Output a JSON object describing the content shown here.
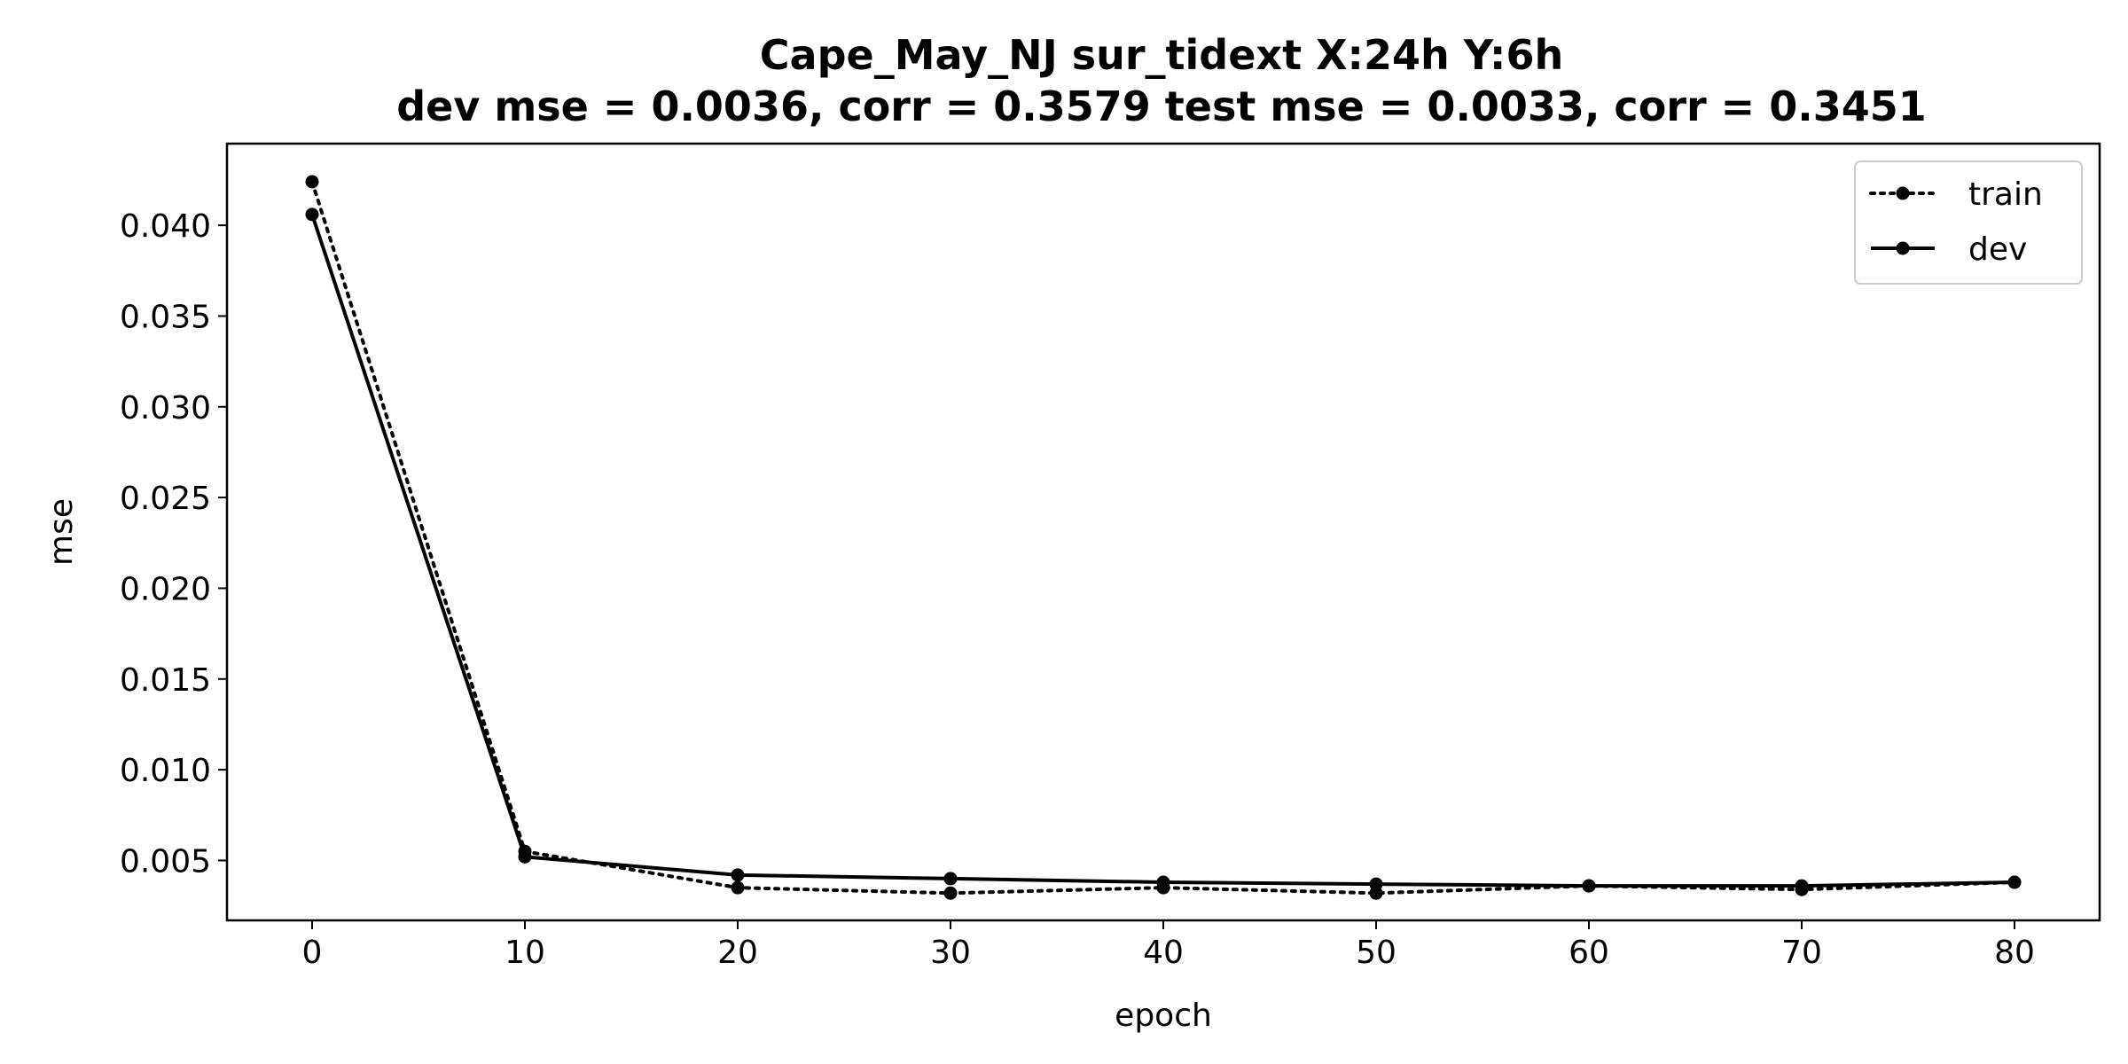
{
  "chart_data": {
    "type": "line",
    "title": "Cape_May_NJ   sur_tidext   X:24h   Y:6h",
    "subtitle": "dev mse = 0.0036, corr = 0.3579   test mse = 0.0033, corr = 0.3451",
    "xlabel": "epoch",
    "ylabel": "mse",
    "xlim": [
      -4,
      84
    ],
    "ylim": [
      0.0017,
      0.0445
    ],
    "x_ticks": [
      0,
      10,
      20,
      30,
      40,
      50,
      60,
      70,
      80
    ],
    "x_tick_labels": [
      "0",
      "10",
      "20",
      "30",
      "40",
      "50",
      "60",
      "70",
      "80"
    ],
    "y_ticks": [
      0.005,
      0.01,
      0.015,
      0.02,
      0.025,
      0.03,
      0.035,
      0.04
    ],
    "y_tick_labels": [
      "0.005",
      "0.010",
      "0.015",
      "0.020",
      "0.025",
      "0.030",
      "0.035",
      "0.040"
    ],
    "grid": false,
    "legend_position": "top-right",
    "x": [
      0,
      10,
      20,
      30,
      40,
      50,
      60,
      70,
      80
    ],
    "series": [
      {
        "name": "train",
        "style": "dotted",
        "color": "#000000",
        "values": [
          0.0424,
          0.0055,
          0.0035,
          0.0032,
          0.0035,
          0.0032,
          0.0036,
          0.0034,
          0.0038
        ]
      },
      {
        "name": "dev",
        "style": "solid",
        "color": "#000000",
        "values": [
          0.0406,
          0.0052,
          0.0042,
          0.004,
          0.0038,
          0.0037,
          0.0036,
          0.0036,
          0.0038
        ]
      }
    ]
  }
}
